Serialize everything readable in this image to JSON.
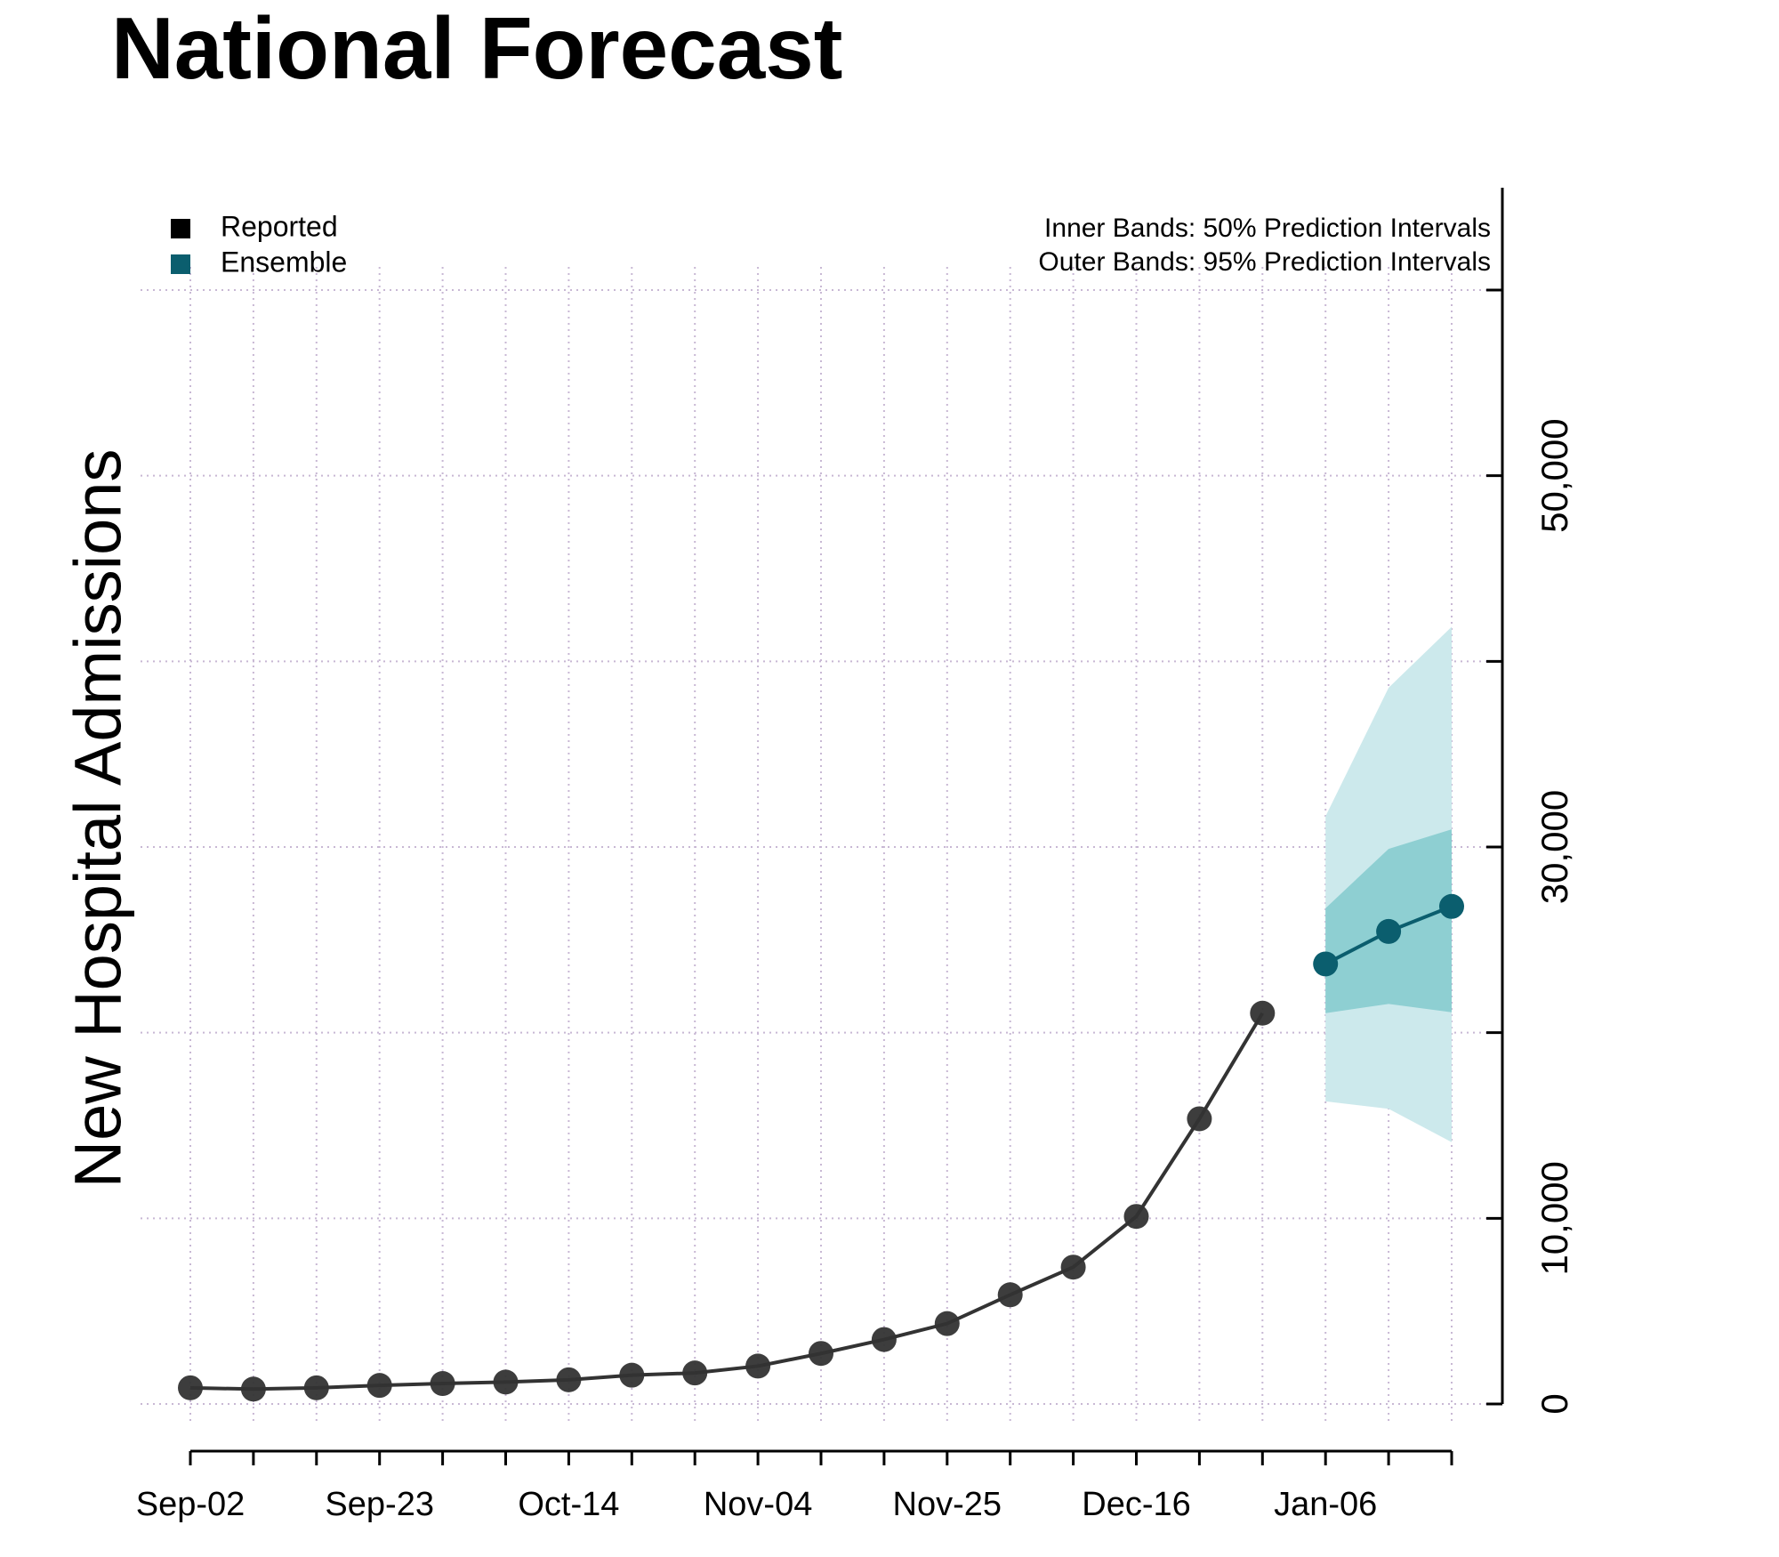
{
  "chart_data": {
    "type": "line",
    "title": "National Forecast",
    "y_label": "New Hospital Admissions",
    "categories": [
      "Sep-02",
      null,
      null,
      "Sep-23",
      null,
      null,
      "Oct-14",
      null,
      null,
      "Nov-04",
      null,
      null,
      "Nov-25",
      null,
      null,
      "Dec-16",
      null,
      null,
      "Jan-06",
      null,
      null
    ],
    "series": [
      {
        "name": "Reported",
        "color": "#333333",
        "legend_color": "#000000",
        "values": [
          870,
          800,
          870,
          1000,
          1100,
          1180,
          1300,
          1550,
          1670,
          2040,
          2720,
          3470,
          4330,
          5880,
          7370,
          10100,
          15360,
          21050,
          null,
          null,
          null
        ]
      },
      {
        "name": "Ensemble",
        "color": "#0b5e6e",
        "legend_color": "#0b5e6e",
        "values": [
          null,
          null,
          null,
          null,
          null,
          null,
          null,
          null,
          null,
          null,
          null,
          null,
          null,
          null,
          null,
          null,
          null,
          null,
          23700,
          25450,
          26800
        ]
      }
    ],
    "bands": [
      {
        "label": "Outer Bands: 95% Prediction Intervals",
        "color": "#cce9ec",
        "lower": [
          null,
          null,
          null,
          null,
          null,
          null,
          null,
          null,
          null,
          null,
          null,
          null,
          null,
          null,
          null,
          null,
          null,
          null,
          16300,
          15900,
          14100
        ],
        "upper": [
          null,
          null,
          null,
          null,
          null,
          null,
          null,
          null,
          null,
          null,
          null,
          null,
          null,
          null,
          null,
          null,
          null,
          null,
          31650,
          38580,
          41860
        ]
      },
      {
        "label": "Inner Bands: 50% Prediction Intervals",
        "color": "#8ecfd2",
        "lower": [
          null,
          null,
          null,
          null,
          null,
          null,
          null,
          null,
          null,
          null,
          null,
          null,
          null,
          null,
          null,
          null,
          null,
          null,
          21050,
          21550,
          21100
        ],
        "upper": [
          null,
          null,
          null,
          null,
          null,
          null,
          null,
          null,
          null,
          null,
          null,
          null,
          null,
          null,
          null,
          null,
          null,
          null,
          26700,
          29900,
          30950
        ]
      }
    ],
    "ylim": [
      -2540,
      65510
    ],
    "yticks": [
      {
        "value": 0,
        "label": "0"
      },
      {
        "value": 10000,
        "label": "10,000"
      },
      {
        "value": 20000,
        "label": null
      },
      {
        "value": 30000,
        "label": "30,000"
      },
      {
        "value": 40000,
        "label": null
      },
      {
        "value": 50000,
        "label": "50,000"
      },
      {
        "value": 60000,
        "label": null
      }
    ],
    "grid": true
  }
}
